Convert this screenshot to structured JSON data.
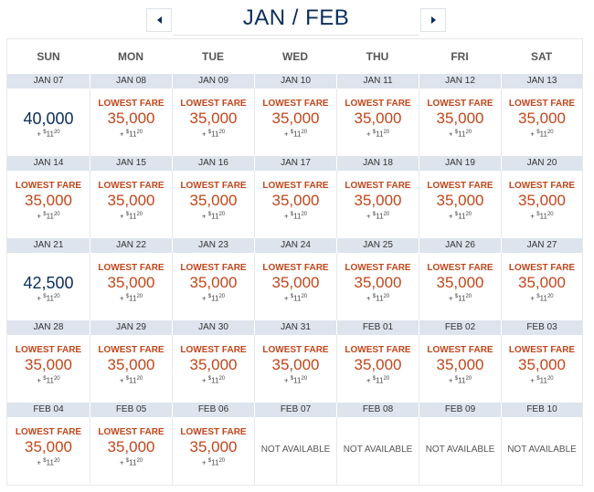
{
  "header": {
    "prev_label": "◂",
    "next_label": "▸",
    "title": "JAN / FEB"
  },
  "days_of_week": [
    "SUN",
    "MON",
    "TUE",
    "WED",
    "THU",
    "FRI",
    "SAT"
  ],
  "lowest_fare_label": "LOWEST FARE",
  "not_available_label": "NOT AVAILABLE",
  "fee": {
    "prefix": "+ ",
    "currency": "$",
    "whole": "11",
    "cents": "20"
  },
  "colors": {
    "lowest": "#c2461b",
    "regular": "#0b2d5b",
    "date_bar": "#dde4ed"
  },
  "weeks": [
    {
      "dates": [
        "JAN 07",
        "JAN 08",
        "JAN 09",
        "JAN 10",
        "JAN 11",
        "JAN 12",
        "JAN 13"
      ],
      "fares": [
        {
          "miles": "40,000",
          "lowest": false,
          "available": true
        },
        {
          "miles": "35,000",
          "lowest": true,
          "available": true
        },
        {
          "miles": "35,000",
          "lowest": true,
          "available": true
        },
        {
          "miles": "35,000",
          "lowest": true,
          "available": true
        },
        {
          "miles": "35,000",
          "lowest": true,
          "available": true
        },
        {
          "miles": "35,000",
          "lowest": true,
          "available": true
        },
        {
          "miles": "35,000",
          "lowest": true,
          "available": true
        }
      ]
    },
    {
      "dates": [
        "JAN 14",
        "JAN 15",
        "JAN 16",
        "JAN 17",
        "JAN 18",
        "JAN 19",
        "JAN 20"
      ],
      "fares": [
        {
          "miles": "35,000",
          "lowest": true,
          "available": true
        },
        {
          "miles": "35,000",
          "lowest": true,
          "available": true
        },
        {
          "miles": "35,000",
          "lowest": true,
          "available": true
        },
        {
          "miles": "35,000",
          "lowest": true,
          "available": true
        },
        {
          "miles": "35,000",
          "lowest": true,
          "available": true
        },
        {
          "miles": "35,000",
          "lowest": true,
          "available": true
        },
        {
          "miles": "35,000",
          "lowest": true,
          "available": true
        }
      ]
    },
    {
      "dates": [
        "JAN 21",
        "JAN 22",
        "JAN 23",
        "JAN 24",
        "JAN 25",
        "JAN 26",
        "JAN 27"
      ],
      "fares": [
        {
          "miles": "42,500",
          "lowest": false,
          "available": true
        },
        {
          "miles": "35,000",
          "lowest": true,
          "available": true
        },
        {
          "miles": "35,000",
          "lowest": true,
          "available": true
        },
        {
          "miles": "35,000",
          "lowest": true,
          "available": true
        },
        {
          "miles": "35,000",
          "lowest": true,
          "available": true
        },
        {
          "miles": "35,000",
          "lowest": true,
          "available": true
        },
        {
          "miles": "35,000",
          "lowest": true,
          "available": true
        }
      ]
    },
    {
      "dates": [
        "JAN 28",
        "JAN 29",
        "JAN 30",
        "JAN 31",
        "FEB 01",
        "FEB 02",
        "FEB 03"
      ],
      "fares": [
        {
          "miles": "35,000",
          "lowest": true,
          "available": true
        },
        {
          "miles": "35,000",
          "lowest": true,
          "available": true
        },
        {
          "miles": "35,000",
          "lowest": true,
          "available": true
        },
        {
          "miles": "35,000",
          "lowest": true,
          "available": true
        },
        {
          "miles": "35,000",
          "lowest": true,
          "available": true
        },
        {
          "miles": "35,000",
          "lowest": true,
          "available": true
        },
        {
          "miles": "35,000",
          "lowest": true,
          "available": true
        }
      ]
    },
    {
      "dates": [
        "FEB 04",
        "FEB 05",
        "FEB 06",
        "FEB 07",
        "FEB 08",
        "FEB 09",
        "FEB 10"
      ],
      "fares": [
        {
          "miles": "35,000",
          "lowest": true,
          "available": true
        },
        {
          "miles": "35,000",
          "lowest": true,
          "available": true
        },
        {
          "miles": "35,000",
          "lowest": true,
          "available": true
        },
        {
          "miles": "",
          "lowest": false,
          "available": false
        },
        {
          "miles": "",
          "lowest": false,
          "available": false
        },
        {
          "miles": "",
          "lowest": false,
          "available": false
        },
        {
          "miles": "",
          "lowest": false,
          "available": false
        }
      ]
    }
  ]
}
